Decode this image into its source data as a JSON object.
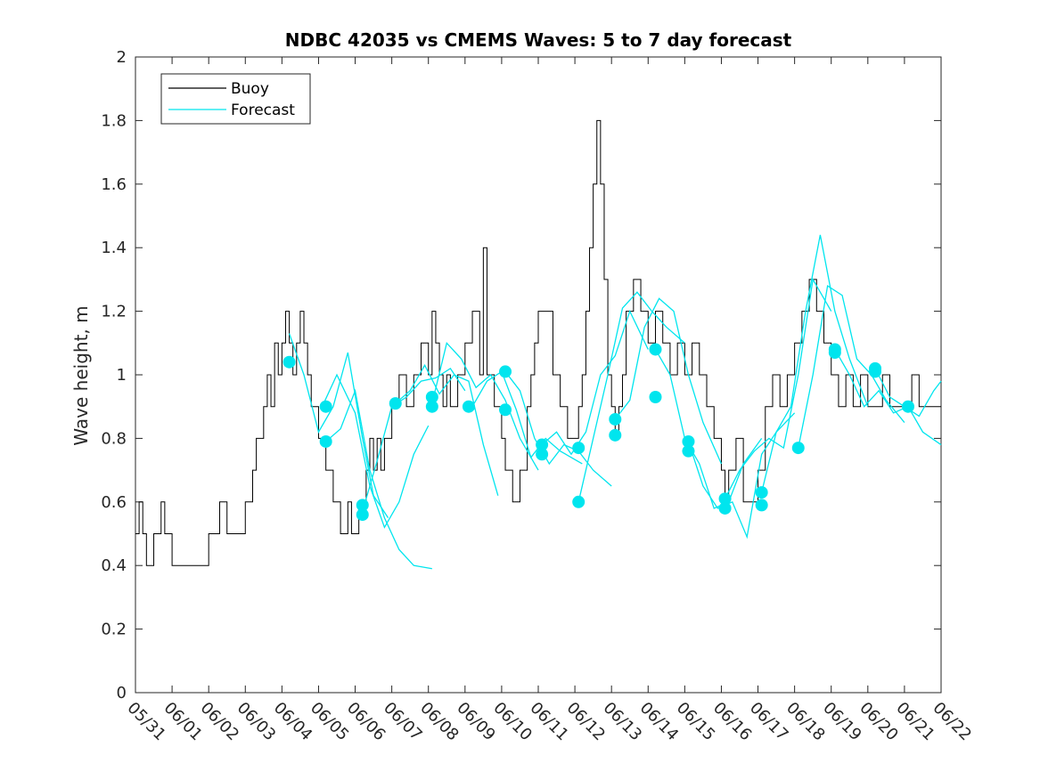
{
  "chart_data": {
    "type": "line",
    "title": "NDBC 42035 vs CMEMS Waves: 5 to 7 day forecast",
    "xlabel": "",
    "ylabel": "Wave height, m",
    "x_ticks": [
      "05/31",
      "06/01",
      "06/02",
      "06/03",
      "06/04",
      "06/05",
      "06/06",
      "06/07",
      "06/08",
      "06/09",
      "06/10",
      "06/11",
      "06/12",
      "06/13",
      "06/14",
      "06/15",
      "06/16",
      "06/17",
      "06/18",
      "06/19",
      "06/20",
      "06/21",
      "06/22"
    ],
    "y_ticks": [
      "0",
      "0.2",
      "0.4",
      "0.6",
      "0.8",
      "1",
      "1.2",
      "1.4",
      "1.6",
      "1.8",
      "2"
    ],
    "xlim": [
      0,
      22
    ],
    "ylim": [
      0,
      2
    ],
    "grid": false,
    "legend": {
      "placement": "top-left",
      "entries": [
        "Buoy",
        "Forecast"
      ]
    },
    "colors": {
      "buoy": "#000000",
      "forecast": "#00e5ee",
      "marker": "#00e5ee",
      "axis": "#262626"
    },
    "series": [
      {
        "name": "Buoy",
        "x": [
          0,
          0.1,
          0.2,
          0.3,
          0.5,
          0.7,
          0.8,
          1.0,
          1.3,
          1.6,
          2.0,
          2.3,
          2.5,
          2.7,
          2.9,
          3.0,
          3.2,
          3.3,
          3.5,
          3.6,
          3.7,
          3.8,
          3.9,
          4.0,
          4.1,
          4.2,
          4.3,
          4.4,
          4.5,
          4.6,
          4.7,
          4.8,
          5.0,
          5.2,
          5.4,
          5.6,
          5.8,
          5.9,
          6.0,
          6.1,
          6.2,
          6.3,
          6.4,
          6.5,
          6.6,
          6.7,
          6.8,
          7.0,
          7.2,
          7.4,
          7.6,
          7.8,
          8.0,
          8.1,
          8.2,
          8.3,
          8.4,
          8.5,
          8.6,
          8.8,
          9.0,
          9.2,
          9.4,
          9.5,
          9.6,
          9.8,
          10.0,
          10.1,
          10.2,
          10.3,
          10.5,
          10.7,
          10.8,
          10.9,
          11.0,
          11.2,
          11.4,
          11.6,
          11.8,
          12.0,
          12.1,
          12.2,
          12.3,
          12.4,
          12.5,
          12.6,
          12.7,
          12.8,
          12.9,
          13.0,
          13.1,
          13.2,
          13.3,
          13.4,
          13.6,
          13.8,
          14.0,
          14.2,
          14.4,
          14.6,
          14.8,
          15.0,
          15.2,
          15.4,
          15.6,
          15.8,
          16.0,
          16.1,
          16.2,
          16.4,
          16.6,
          16.8,
          17.0,
          17.2,
          17.4,
          17.6,
          17.8,
          18.0,
          18.2,
          18.4,
          18.6,
          18.8,
          19.0,
          19.2,
          19.4,
          19.6,
          19.8,
          20.0,
          20.2,
          20.4,
          20.6,
          20.8,
          21.0,
          21.2,
          21.4,
          21.6,
          21.8,
          22.0
        ],
        "y": [
          0.5,
          0.6,
          0.5,
          0.4,
          0.5,
          0.6,
          0.5,
          0.4,
          0.4,
          0.4,
          0.5,
          0.6,
          0.5,
          0.5,
          0.5,
          0.6,
          0.7,
          0.8,
          0.9,
          1.0,
          0.9,
          1.1,
          1.0,
          1.1,
          1.2,
          1.1,
          1.0,
          1.1,
          1.2,
          1.1,
          1.0,
          0.9,
          0.8,
          0.7,
          0.6,
          0.5,
          0.6,
          0.5,
          0.5,
          0.6,
          0.6,
          0.7,
          0.8,
          0.7,
          0.8,
          0.7,
          0.8,
          0.9,
          1.0,
          0.9,
          1.0,
          1.1,
          1.0,
          1.2,
          1.1,
          1.0,
          0.9,
          1.0,
          0.9,
          1.0,
          1.1,
          1.2,
          1.0,
          1.4,
          1.0,
          0.9,
          0.8,
          0.7,
          0.7,
          0.6,
          0.7,
          0.9,
          1.0,
          1.1,
          1.2,
          1.2,
          1.0,
          0.9,
          0.8,
          0.8,
          0.9,
          1.0,
          1.2,
          1.4,
          1.6,
          1.8,
          1.6,
          1.3,
          1.0,
          0.9,
          0.8,
          0.9,
          1.0,
          1.2,
          1.3,
          1.2,
          1.1,
          1.2,
          1.1,
          1.0,
          1.1,
          1.0,
          1.1,
          1.0,
          0.9,
          0.8,
          0.7,
          0.6,
          0.7,
          0.8,
          0.6,
          0.6,
          0.7,
          0.9,
          1.0,
          0.9,
          1.0,
          1.1,
          1.2,
          1.3,
          1.2,
          1.1,
          1.0,
          0.9,
          1.0,
          0.9,
          1.0,
          0.9,
          0.9,
          1.0,
          0.9,
          0.9,
          0.9,
          1.0,
          0.9,
          0.9,
          0.9,
          0.9
        ]
      },
      {
        "name": "Forecast",
        "segments": [
          {
            "x": [
              4.2,
              4.6,
              5.0,
              5.4,
              5.8,
              6.2,
              6.5,
              6.9
            ],
            "y": [
              1.13,
              1.0,
              0.82,
              0.9,
              1.07,
              0.8,
              0.62,
              0.55
            ]
          },
          {
            "x": [
              5.1,
              5.5,
              6.0,
              6.4,
              6.8,
              7.2,
              7.6,
              8.0
            ],
            "y": [
              0.9,
              1.0,
              0.88,
              0.65,
              0.52,
              0.6,
              0.75,
              0.84
            ]
          },
          {
            "x": [
              5.2,
              5.6,
              6.0,
              6.4,
              6.8,
              7.2,
              7.6,
              8.1
            ],
            "y": [
              0.79,
              0.83,
              0.95,
              0.7,
              0.55,
              0.45,
              0.4,
              0.39
            ]
          },
          {
            "x": [
              6.2,
              6.6,
              7.0,
              7.4,
              7.8,
              8.2,
              8.6,
              9.0
            ],
            "y": [
              0.57,
              0.73,
              0.9,
              0.93,
              0.98,
              0.99,
              1.02,
              0.95
            ]
          },
          {
            "x": [
              7.1,
              7.5,
              7.9,
              8.3,
              8.7,
              9.1,
              9.5,
              9.9
            ],
            "y": [
              0.91,
              0.95,
              1.03,
              0.94,
              1.0,
              0.98,
              0.78,
              0.62
            ]
          },
          {
            "x": [
              8.1,
              8.5,
              8.9,
              9.3,
              9.7,
              10.1,
              10.5,
              11.0
            ],
            "y": [
              0.91,
              1.1,
              1.05,
              0.96,
              1.0,
              0.92,
              0.8,
              0.7
            ]
          },
          {
            "x": [
              9.2,
              9.6,
              10.0,
              10.4,
              10.8,
              11.2,
              11.6,
              12.2
            ],
            "y": [
              0.9,
              0.98,
              1.01,
              0.89,
              0.74,
              0.8,
              0.76,
              0.72
            ]
          },
          {
            "x": [
              10.1,
              10.5,
              10.9,
              11.3,
              11.7,
              12.1,
              12.5,
              13.0
            ],
            "y": [
              1.01,
              0.95,
              0.8,
              0.72,
              0.78,
              0.76,
              0.7,
              0.65
            ]
          },
          {
            "x": [
              11.1,
              11.5,
              11.9,
              12.3,
              12.7,
              13.1,
              13.5,
              14.0
            ],
            "y": [
              0.78,
              0.82,
              0.75,
              0.82,
              1.0,
              1.06,
              1.2,
              1.08
            ]
          },
          {
            "x": [
              12.1,
              12.5,
              12.9,
              13.3,
              13.7,
              14.1,
              14.5,
              15.0
            ],
            "y": [
              0.6,
              0.8,
              1.0,
              1.21,
              1.26,
              1.2,
              1.15,
              1.1
            ]
          },
          {
            "x": [
              13.1,
              13.5,
              13.9,
              14.3,
              14.7,
              15.1,
              15.5,
              16.0
            ],
            "y": [
              0.86,
              0.92,
              1.15,
              1.24,
              1.2,
              1.0,
              0.85,
              0.72
            ]
          },
          {
            "x": [
              14.2,
              14.6,
              15.0,
              15.4,
              15.8,
              16.2,
              16.6,
              17.1
            ],
            "y": [
              1.08,
              1.0,
              0.8,
              0.72,
              0.58,
              0.6,
              0.72,
              0.8
            ]
          },
          {
            "x": [
              15.1,
              15.5,
              15.9,
              16.3,
              16.7,
              17.1,
              17.5,
              18.0
            ],
            "y": [
              0.79,
              0.65,
              0.58,
              0.6,
              0.49,
              0.75,
              0.82,
              0.88
            ]
          },
          {
            "x": [
              16.1,
              16.5,
              16.9,
              17.3,
              17.7,
              18.1,
              18.5,
              19.0
            ],
            "y": [
              0.61,
              0.7,
              0.76,
              0.8,
              0.77,
              1.0,
              1.3,
              1.2
            ]
          },
          {
            "x": [
              17.1,
              17.5,
              17.9,
              18.3,
              18.7,
              19.1,
              19.5,
              20.0
            ],
            "y": [
              0.63,
              0.82,
              0.9,
              1.2,
              1.44,
              1.2,
              1.05,
              0.9
            ]
          },
          {
            "x": [
              18.1,
              18.5,
              18.9,
              19.3,
              19.7,
              20.1,
              20.5,
              21.0
            ],
            "y": [
              0.77,
              1.0,
              1.28,
              1.25,
              1.05,
              1.0,
              0.92,
              0.85
            ]
          },
          {
            "x": [
              19.1,
              19.5,
              19.9,
              20.3,
              20.7,
              21.1,
              21.5,
              22.0
            ],
            "y": [
              1.08,
              1.0,
              0.9,
              0.95,
              0.88,
              0.9,
              0.82,
              0.78
            ]
          },
          {
            "x": [
              20.2,
              20.6,
              21.0,
              21.4,
              21.8,
              22.0
            ],
            "y": [
              1.02,
              0.93,
              0.9,
              0.87,
              0.95,
              0.98
            ]
          }
        ]
      }
    ],
    "markers": {
      "x": [
        4.2,
        5.2,
        5.2,
        6.2,
        6.2,
        7.1,
        8.1,
        8.1,
        9.1,
        10.1,
        10.1,
        11.1,
        11.1,
        12.1,
        12.1,
        13.1,
        13.1,
        14.2,
        14.2,
        15.1,
        15.1,
        16.1,
        16.1,
        17.1,
        17.1,
        18.1,
        19.1,
        19.1,
        20.2,
        20.2,
        21.1
      ],
      "y": [
        1.04,
        0.9,
        0.79,
        0.59,
        0.56,
        0.91,
        0.93,
        0.9,
        0.9,
        1.01,
        0.89,
        0.78,
        0.75,
        0.77,
        0.6,
        0.86,
        0.81,
        1.08,
        0.93,
        0.79,
        0.76,
        0.61,
        0.58,
        0.63,
        0.59,
        0.77,
        1.08,
        1.07,
        1.02,
        1.01,
        0.9
      ]
    }
  }
}
